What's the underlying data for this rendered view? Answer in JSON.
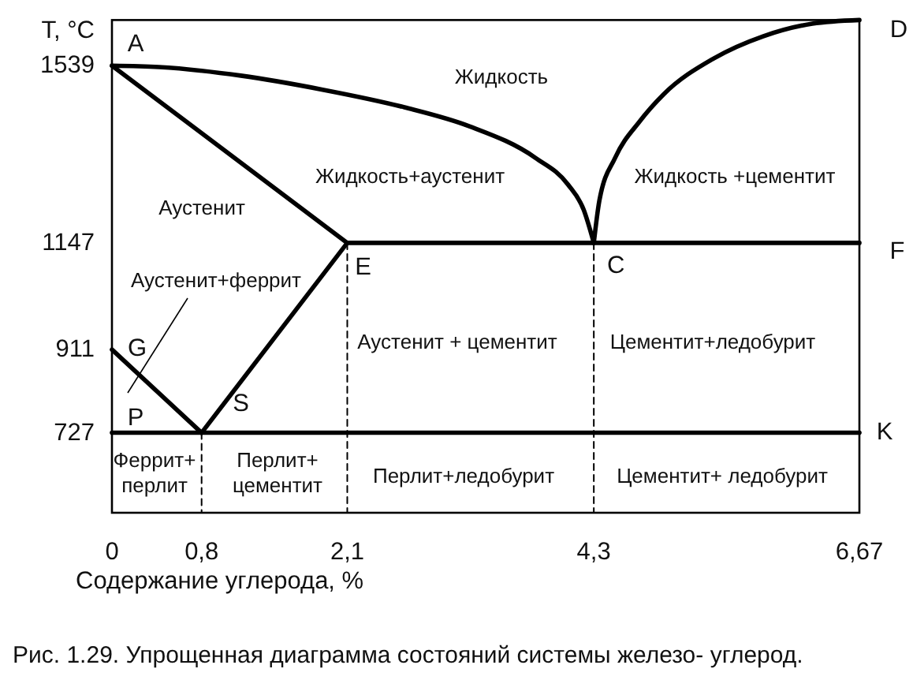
{
  "chart_data": {
    "type": "line",
    "ylabel": "T, °C",
    "xlabel": "Содержание углерода, %",
    "xlim": [
      0,
      6.67
    ],
    "xticks": [
      0,
      {
        "value": 0.8,
        "label": "0,8"
      },
      {
        "value": 2.1,
        "label": "2,1"
      },
      {
        "value": 4.3,
        "label": "4,3"
      },
      {
        "value": 6.67,
        "label": "6,67"
      }
    ],
    "ylim": [
      550,
      1640
    ],
    "yticks": [
      727,
      911,
      1147,
      1539
    ],
    "line_style": "solid",
    "series": [
      {
        "color": "#000000",
        "x": [
          0,
          0.42,
          1.15,
          1.88,
          2.61,
          3.19,
          3.78,
          4.07,
          4.21,
          4.3
        ],
        "values": [
          1539,
          1536,
          1517,
          1486,
          1447,
          1405,
          1335,
          1276,
          1220,
          1147
        ]
      },
      {
        "color": "#000000",
        "x": [
          4.3,
          4.35,
          4.49,
          4.71,
          4.92,
          5.37,
          5.81,
          6.25,
          6.67
        ],
        "values": [
          1147,
          1241,
          1335,
          1416,
          1475,
          1555,
          1604,
          1632,
          1640
        ]
      },
      {
        "color": "#000000",
        "x": [
          0,
          2.1
        ],
        "values": [
          1539,
          1147
        ]
      },
      {
        "color": "#000000",
        "x": [
          2.1,
          6.67
        ],
        "values": [
          1147,
          1147
        ]
      },
      {
        "color": "#000000",
        "x": [
          2.1,
          0.8
        ],
        "values": [
          1147,
          727
        ]
      },
      {
        "color": "#000000",
        "x": [
          0,
          0.8
        ],
        "values": [
          911,
          727
        ]
      },
      {
        "color": "#000000",
        "x": [
          0,
          6.67
        ],
        "values": [
          727,
          727
        ]
      },
      {
        "color": "#000000",
        "x": [
          0.8,
          0.8
        ],
        "values": [
          727,
          550
        ],
        "line_style": "dashed"
      },
      {
        "color": "#000000",
        "x": [
          2.1,
          2.1
        ],
        "values": [
          1147,
          550
        ],
        "line_style": "dashed"
      },
      {
        "color": "#000000",
        "x": [
          4.3,
          4.3
        ],
        "values": [
          1147,
          550
        ],
        "line_style": "dashed"
      }
    ],
    "annotations": [
      "Жидкость",
      "Жидкость+аустенит",
      "Жидкость +цементит",
      "Аустенит",
      "Аустенит+феррит",
      "Аустенит + цементит",
      "Цементит+ледобурит",
      "Феррит+\nперлит",
      "Перлит+\nцементит",
      "Перлит+ледобурит",
      "Цементит+ ледобурит",
      {
        "text": "A",
        "x": 0,
        "y": 1539
      },
      {
        "text": "D",
        "x": 6.67,
        "y": 1640
      },
      {
        "text": "F",
        "x": 6.67,
        "y": 1147
      },
      {
        "text": "K",
        "x": 6.67,
        "y": 727
      },
      {
        "text": "C",
        "x": 4.3,
        "y": 1147
      },
      {
        "text": "E",
        "x": 2.1,
        "y": 1147
      },
      {
        "text": "G",
        "x": 0,
        "y": 911
      },
      {
        "text": "P",
        "x": 0,
        "y": 727
      },
      {
        "text": "S",
        "x": 0.8,
        "y": 727
      },
      "Рис. 1.29. Упрощенная диаграмма состояний системы железо- углерод."
    ]
  }
}
